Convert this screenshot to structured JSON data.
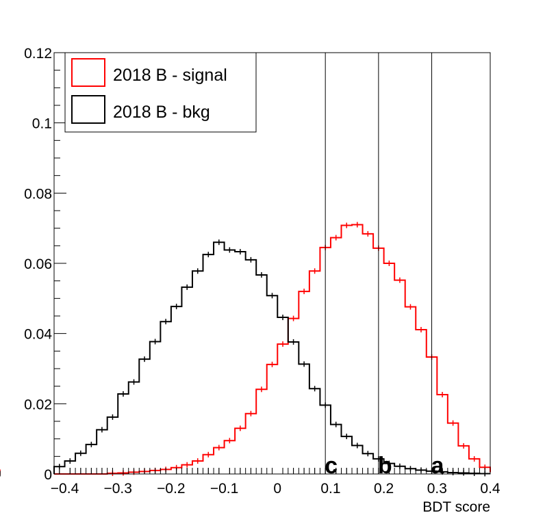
{
  "chart_data": {
    "type": "histogram-step",
    "xlabel": "BDT score",
    "ylabel": "",
    "xlim": [
      -0.42,
      0.4
    ],
    "ylim": [
      0,
      0.12
    ],
    "x_ticks": [
      -0.4,
      -0.3,
      -0.2,
      -0.1,
      0,
      0.1,
      0.2,
      0.3,
      0.4
    ],
    "x_tick_labels": [
      "−0.4",
      "−0.3",
      "−0.2",
      "−0.1",
      "0",
      "0.1",
      "0.2",
      "0.3",
      "0.4"
    ],
    "y_ticks": [
      0,
      0.02,
      0.04,
      0.06,
      0.08,
      0.1,
      0.12
    ],
    "y_tick_labels": [
      "0",
      "0.02",
      "0.04",
      "0.06",
      "0.08",
      "0.1",
      "0.12"
    ],
    "bin_edges": [
      -0.42,
      -0.4,
      -0.38,
      -0.36,
      -0.34,
      -0.32,
      -0.3,
      -0.28,
      -0.26,
      -0.24,
      -0.22,
      -0.2,
      -0.18,
      -0.16,
      -0.14,
      -0.12,
      -0.1,
      -0.08,
      -0.06,
      -0.04,
      -0.02,
      0.0,
      0.02,
      0.04,
      0.06,
      0.08,
      0.1,
      0.12,
      0.14,
      0.16,
      0.18,
      0.2,
      0.22,
      0.24,
      0.26,
      0.28,
      0.3,
      0.32,
      0.34,
      0.36,
      0.38,
      0.4
    ],
    "series": [
      {
        "name": "2018 B - signal",
        "color": "#ff0000",
        "values": [
          0,
          0,
          0,
          0,
          0,
          0.0002,
          0.0003,
          0.0005,
          0.0007,
          0.001,
          0.0013,
          0.0018,
          0.0026,
          0.0037,
          0.0055,
          0.0075,
          0.0095,
          0.013,
          0.0172,
          0.0241,
          0.0312,
          0.037,
          0.0443,
          0.052,
          0.0578,
          0.0645,
          0.0673,
          0.0708,
          0.071,
          0.0684,
          0.0643,
          0.06,
          0.0552,
          0.0476,
          0.0411,
          0.0333,
          0.0226,
          0.0145,
          0.008,
          0.0043,
          0.0019,
          0.0005
        ]
      },
      {
        "name": "2018 B - bkg",
        "color": "#000000",
        "values": [
          0.0021,
          0.0037,
          0.0059,
          0.0084,
          0.0126,
          0.0162,
          0.0228,
          0.0262,
          0.0327,
          0.0377,
          0.0434,
          0.0477,
          0.0532,
          0.0578,
          0.0625,
          0.066,
          0.0638,
          0.0633,
          0.061,
          0.0567,
          0.0508,
          0.0446,
          0.0376,
          0.0313,
          0.0243,
          0.0196,
          0.0141,
          0.0107,
          0.0081,
          0.0058,
          0.0043,
          0.003,
          0.0022,
          0.0015,
          0.0011,
          0.0008,
          0.0006,
          0.0004,
          0.0003,
          0.0002,
          0.0001,
          0.0001
        ]
      }
    ],
    "cut_lines": [
      {
        "label": "c",
        "x": 0.09
      },
      {
        "label": "b",
        "x": 0.19
      },
      {
        "label": "a",
        "x": 0.29
      }
    ],
    "legend_position": "top-left",
    "grid": false
  }
}
